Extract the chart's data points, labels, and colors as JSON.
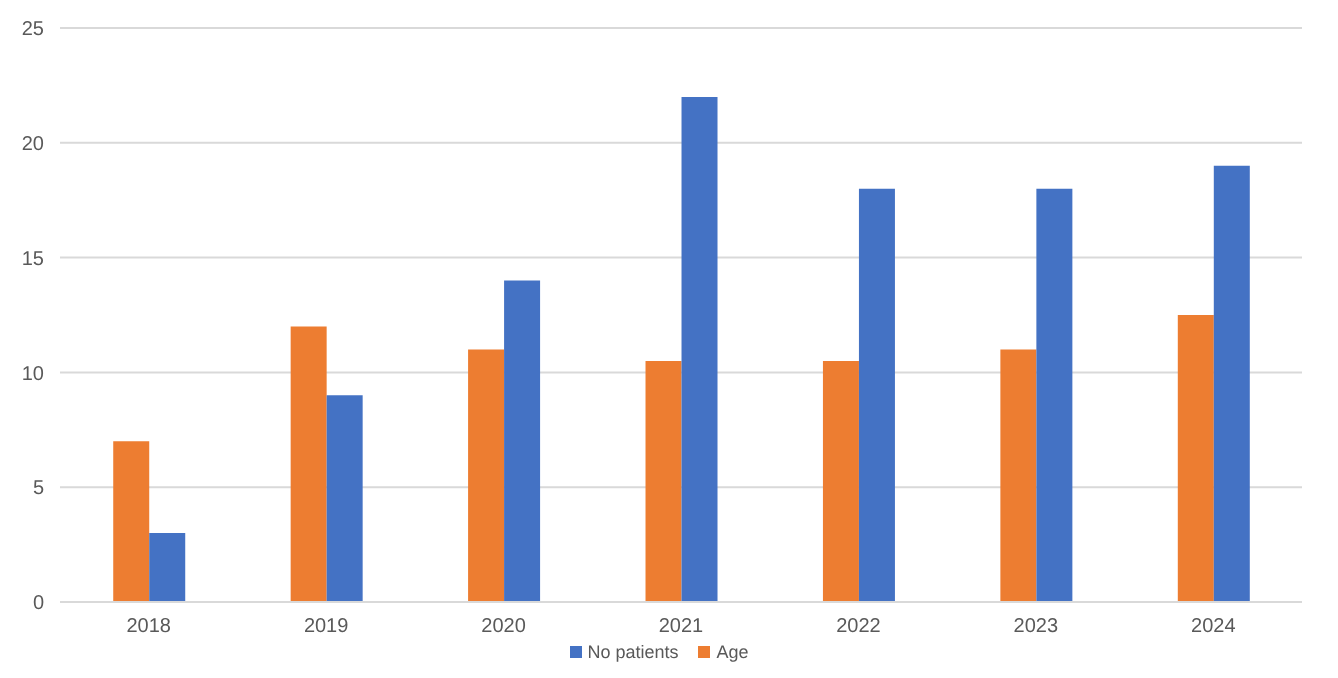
{
  "chart_data": {
    "type": "bar",
    "categories": [
      "2018",
      "2019",
      "2020",
      "2021",
      "2022",
      "2023",
      "2024"
    ],
    "series": [
      {
        "name": "Age",
        "color": "#ed7d31",
        "values": [
          7,
          12,
          11,
          10.5,
          10.5,
          11,
          12.5
        ]
      },
      {
        "name": "No patients",
        "color": "#4472c4",
        "values": [
          3,
          9,
          14,
          22,
          18,
          18,
          19
        ]
      }
    ],
    "ylim": [
      0,
      25
    ],
    "yticks": [
      0,
      5,
      10,
      15,
      20,
      25
    ],
    "grid": "y",
    "legend": "bottom"
  }
}
